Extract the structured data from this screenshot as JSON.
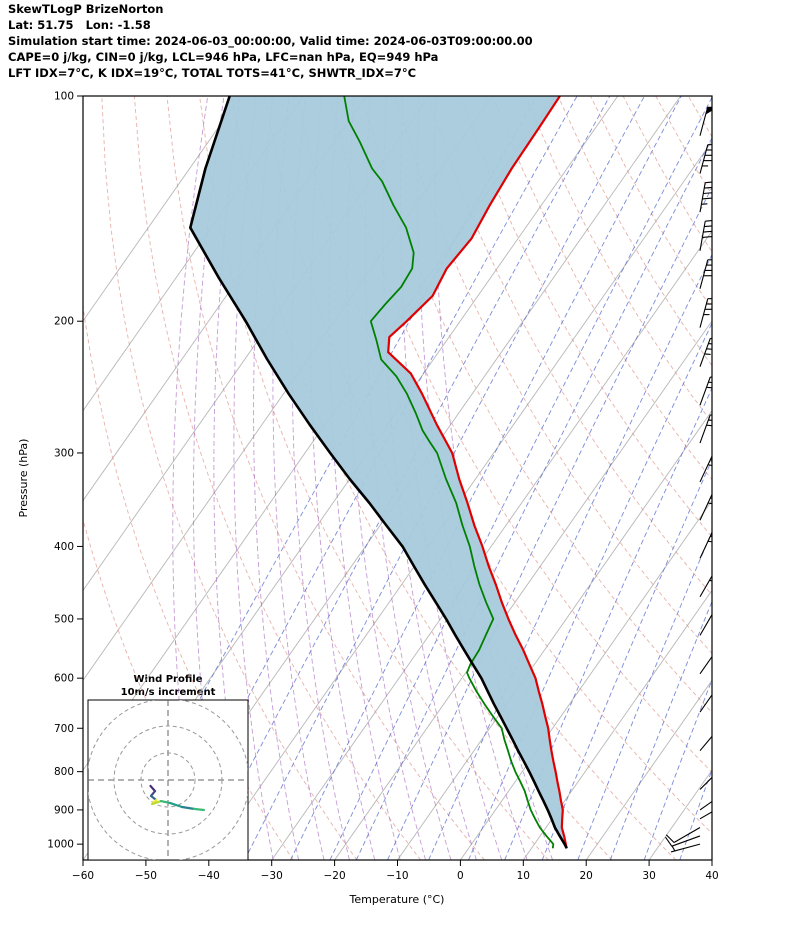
{
  "header": {
    "title": "SkewTLogP BrizeNorton",
    "location": "Lat: 51.75   Lon: -1.58",
    "times": "Simulation start time: 2024-06-03_00:00:00, Valid time: 2024-06-03T09:00:00.00",
    "indices1": "CAPE=0 j/kg, CIN=0 j/kg, LCL=946 hPa, LFC=nan hPa, EQ=949 hPa",
    "indices2": "LFT IDX=7°C, K IDX=19°C, TOTAL TOTS=41°C, SHWTR_IDX=7°C"
  },
  "chart_data": {
    "type": "line",
    "variant": "skew-t-log-p",
    "title": "SkewTLogP BrizeNorton",
    "xlabel": "Temperature (°C)",
    "ylabel": "Pressure (hPa)",
    "xlim": [
      -60,
      40
    ],
    "pressure_range": [
      100,
      1050
    ],
    "x_ticks": [
      -60,
      -50,
      -40,
      -30,
      -20,
      -10,
      0,
      10,
      20,
      30,
      40
    ],
    "y_ticks": [
      100,
      200,
      300,
      400,
      500,
      600,
      700,
      800,
      900,
      1000
    ],
    "background": {
      "isotherms": {
        "color": "#a6a6a6",
        "start": -120,
        "end": 40,
        "step": 10
      },
      "dry_adiabats": {
        "color": "#d98880",
        "start": -40,
        "end": 170,
        "step": 10
      },
      "moist_adiabats": {
        "color": "#a569bd",
        "start": -44,
        "end": 12,
        "step": 4
      },
      "mixing_ratio": {
        "color": "#5b6ece",
        "values": [
          0.02,
          0.05,
          0.1,
          0.2,
          0.4,
          0.7,
          1,
          1.5,
          2.5,
          4,
          6,
          9,
          13,
          18,
          25,
          35
        ]
      }
    },
    "shade": {
      "between": [
        "parcel",
        "temperature"
      ],
      "color": "#a7cadc"
    },
    "series": [
      {
        "name": "temperature",
        "color": "#e00000",
        "points": [
          [
            1013,
            15.6
          ],
          [
            1000,
            15
          ],
          [
            975,
            13.8
          ],
          [
            950,
            12.5
          ],
          [
            925,
            11.6
          ],
          [
            900,
            10.7
          ],
          [
            875,
            9.4
          ],
          [
            850,
            8.1
          ],
          [
            825,
            6.7
          ],
          [
            800,
            5.3
          ],
          [
            775,
            3.8
          ],
          [
            750,
            2.3
          ],
          [
            725,
            0.8
          ],
          [
            700,
            -0.7
          ],
          [
            675,
            -2.5
          ],
          [
            650,
            -4.3
          ],
          [
            625,
            -6.3
          ],
          [
            600,
            -8.3
          ],
          [
            575,
            -10.8
          ],
          [
            550,
            -13.4
          ],
          [
            525,
            -16.3
          ],
          [
            500,
            -19.2
          ],
          [
            475,
            -22.1
          ],
          [
            450,
            -25
          ],
          [
            425,
            -28.2
          ],
          [
            400,
            -31.4
          ],
          [
            375,
            -35
          ],
          [
            350,
            -38.6
          ],
          [
            325,
            -42.6
          ],
          [
            300,
            -46.6
          ],
          [
            275,
            -52.2
          ],
          [
            250,
            -58
          ],
          [
            235,
            -62
          ],
          [
            220,
            -68
          ],
          [
            210,
            -69.5
          ],
          [
            200,
            -68.5
          ],
          [
            185,
            -67.2
          ],
          [
            170,
            -68
          ],
          [
            155,
            -67.4
          ],
          [
            140,
            -68.2
          ],
          [
            125,
            -68.8
          ],
          [
            110,
            -69
          ],
          [
            100,
            -69.2
          ]
        ]
      },
      {
        "name": "dewpoint",
        "color": "#008000",
        "points": [
          [
            1013,
            13.4
          ],
          [
            1000,
            13
          ],
          [
            975,
            11
          ],
          [
            950,
            9
          ],
          [
            925,
            7.3
          ],
          [
            900,
            5.6
          ],
          [
            875,
            4.1
          ],
          [
            850,
            2.6
          ],
          [
            825,
            0.8
          ],
          [
            800,
            -1.1
          ],
          [
            775,
            -2.9
          ],
          [
            750,
            -4.6
          ],
          [
            725,
            -6.4
          ],
          [
            700,
            -8.1
          ],
          [
            675,
            -10.8
          ],
          [
            650,
            -13.5
          ],
          [
            625,
            -16.2
          ],
          [
            600,
            -18.8
          ],
          [
            590,
            -19.8
          ],
          [
            575,
            -20.2
          ],
          [
            550,
            -20.4
          ],
          [
            525,
            -21
          ],
          [
            500,
            -21.6
          ],
          [
            475,
            -24.6
          ],
          [
            450,
            -27.6
          ],
          [
            425,
            -30.5
          ],
          [
            400,
            -33.4
          ],
          [
            375,
            -36.9
          ],
          [
            350,
            -40.4
          ],
          [
            325,
            -44.7
          ],
          [
            300,
            -49
          ],
          [
            290,
            -51.4
          ],
          [
            280,
            -53.8
          ],
          [
            265,
            -56.9
          ],
          [
            250,
            -60.4
          ],
          [
            237,
            -64
          ],
          [
            225,
            -68.3
          ],
          [
            212,
            -71.2
          ],
          [
            200,
            -74.2
          ],
          [
            190,
            -73.8
          ],
          [
            180,
            -73.2
          ],
          [
            170,
            -73.5
          ],
          [
            162,
            -75
          ],
          [
            150,
            -79
          ],
          [
            140,
            -83.5
          ],
          [
            130,
            -88
          ],
          [
            125,
            -91
          ],
          [
            115,
            -96
          ],
          [
            108,
            -100
          ],
          [
            100,
            -103.5
          ]
        ]
      },
      {
        "name": "parcel",
        "color": "#000000",
        "points": [
          [
            1013,
            15.6
          ],
          [
            1000,
            14.8
          ],
          [
            975,
            13.1
          ],
          [
            950,
            11.4
          ],
          [
            925,
            9.9
          ],
          [
            900,
            8.3
          ],
          [
            875,
            6.6
          ],
          [
            850,
            4.8
          ],
          [
            825,
            3
          ],
          [
            800,
            1.1
          ],
          [
            775,
            -0.9
          ],
          [
            750,
            -3
          ],
          [
            725,
            -5.1
          ],
          [
            700,
            -7.3
          ],
          [
            675,
            -9.6
          ],
          [
            650,
            -12
          ],
          [
            625,
            -14.4
          ],
          [
            600,
            -16.9
          ],
          [
            575,
            -19.8
          ],
          [
            550,
            -22.8
          ],
          [
            525,
            -25.9
          ],
          [
            500,
            -29.1
          ],
          [
            475,
            -32.6
          ],
          [
            450,
            -36.3
          ],
          [
            425,
            -40.1
          ],
          [
            400,
            -44.1
          ],
          [
            375,
            -49
          ],
          [
            350,
            -54.2
          ],
          [
            325,
            -60
          ],
          [
            300,
            -66
          ],
          [
            275,
            -72.4
          ],
          [
            250,
            -79.2
          ],
          [
            225,
            -86.4
          ],
          [
            200,
            -94.1
          ],
          [
            175,
            -103.2
          ],
          [
            150,
            -113.3
          ],
          [
            125,
            -117.5
          ],
          [
            100,
            -121.7
          ]
        ]
      }
    ],
    "wind_barbs": [
      {
        "p": 100,
        "spd": 55,
        "dir": 15
      },
      {
        "p": 113,
        "spd": 50,
        "dir": 15
      },
      {
        "p": 127,
        "spd": 45,
        "dir": 15
      },
      {
        "p": 143,
        "spd": 45,
        "dir": 10
      },
      {
        "p": 161,
        "spd": 40,
        "dir": 10
      },
      {
        "p": 181,
        "spd": 40,
        "dir": 15
      },
      {
        "p": 204,
        "spd": 35,
        "dir": 15
      },
      {
        "p": 230,
        "spd": 35,
        "dir": 20
      },
      {
        "p": 259,
        "spd": 30,
        "dir": 20
      },
      {
        "p": 291,
        "spd": 30,
        "dir": 20
      },
      {
        "p": 328,
        "spd": 30,
        "dir": 25
      },
      {
        "p": 369,
        "spd": 25,
        "dir": 25
      },
      {
        "p": 415,
        "spd": 25,
        "dir": 25
      },
      {
        "p": 467,
        "spd": 25,
        "dir": 30
      },
      {
        "p": 526,
        "spd": 20,
        "dir": 30
      },
      {
        "p": 592,
        "spd": 20,
        "dir": 35
      },
      {
        "p": 666,
        "spd": 15,
        "dir": 35
      },
      {
        "p": 750,
        "spd": 15,
        "dir": 40
      },
      {
        "p": 845,
        "spd": 10,
        "dir": 45
      },
      {
        "p": 900,
        "spd": 10,
        "dir": 55
      },
      {
        "p": 925,
        "spd": 10,
        "dir": 60
      },
      {
        "p": 950,
        "spd": 10,
        "dir": 240
      },
      {
        "p": 975,
        "spd": 10,
        "dir": 250
      },
      {
        "p": 1000,
        "spd": 5,
        "dir": 255
      }
    ],
    "hodograph": {
      "title": "Wind Profile",
      "subtitle": "10m/s increment",
      "rings_ms": [
        10,
        20,
        30
      ],
      "segments": [
        {
          "p1": [
            -6.5,
            -2.2
          ],
          "p2": [
            -4.8,
            -4.1
          ],
          "color": "#482878"
        },
        {
          "p1": [
            -4.8,
            -4.1
          ],
          "p2": [
            -6.3,
            -5.9
          ],
          "color": "#3e4a89"
        },
        {
          "p1": [
            -6.3,
            -5.9
          ],
          "p2": [
            -4.4,
            -7.4
          ],
          "color": "#31688e"
        },
        {
          "p1": [
            -4.4,
            -7.4
          ],
          "p2": [
            -5.9,
            -8.9
          ],
          "color": "#fde725"
        },
        {
          "p1": [
            -5.9,
            -8.9
          ],
          "p2": [
            -2.6,
            -7.8
          ],
          "color": "#b5de2b"
        },
        {
          "p1": [
            -2.6,
            -7.8
          ],
          "p2": [
            0.7,
            -8.5
          ],
          "color": "#35b779"
        },
        {
          "p1": [
            0.7,
            -8.5
          ],
          "p2": [
            5.2,
            -10
          ],
          "color": "#1f9e89"
        },
        {
          "p1": [
            5.2,
            -10
          ],
          "p2": [
            9.6,
            -10.7
          ],
          "color": "#26828e"
        },
        {
          "p1": [
            9.6,
            -10.7
          ],
          "p2": [
            13.3,
            -11.1
          ],
          "color": "#3cbb75"
        }
      ]
    }
  }
}
